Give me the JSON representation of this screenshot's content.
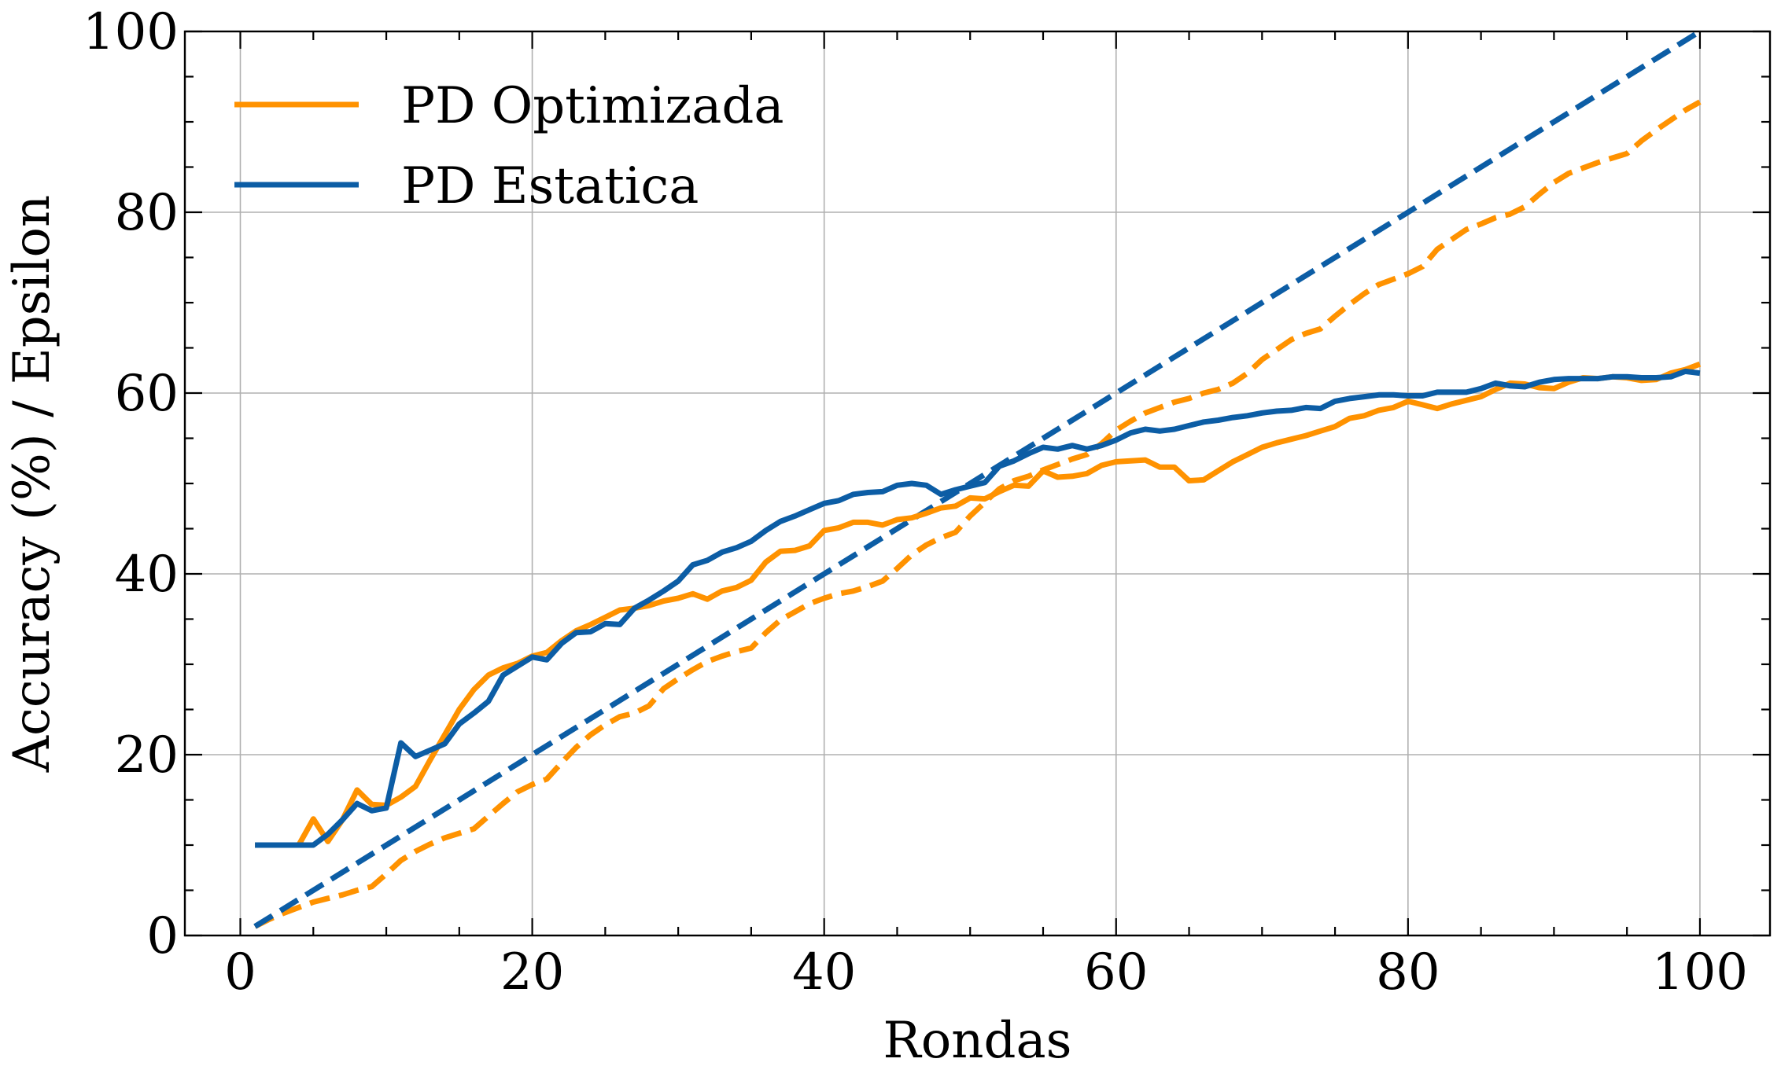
{
  "chart_data": {
    "type": "line",
    "xlabel": "Rondas",
    "ylabel": "Accuracy (%) / Epsilon",
    "xlim": [
      -3.8,
      104.8
    ],
    "ylim": [
      0,
      100
    ],
    "xticks": [
      0,
      20,
      40,
      60,
      80,
      100
    ],
    "yticks": [
      0,
      20,
      40,
      60,
      80,
      100
    ],
    "grid": true,
    "legend_position": "top-left",
    "colors": {
      "optimizada": "#ff9200",
      "estatica": "#0c5da5"
    },
    "series": [
      {
        "name": "PD Optimizada",
        "style": "solid",
        "color": "#ff9200",
        "x": [
          1,
          2,
          3,
          4,
          5,
          6,
          7,
          8,
          9,
          10,
          11,
          12,
          13,
          14,
          15,
          16,
          17,
          18,
          19,
          20,
          21,
          22,
          23,
          24,
          25,
          26,
          27,
          28,
          29,
          30,
          31,
          32,
          33,
          34,
          35,
          36,
          37,
          38,
          39,
          40,
          41,
          42,
          43,
          44,
          45,
          46,
          47,
          48,
          49,
          50,
          51,
          52,
          53,
          54,
          55,
          56,
          57,
          58,
          59,
          60,
          61,
          62,
          63,
          64,
          65,
          66,
          67,
          68,
          69,
          70,
          71,
          72,
          73,
          74,
          75,
          76,
          77,
          78,
          79,
          80,
          81,
          82,
          83,
          84,
          85,
          86,
          87,
          88,
          89,
          90,
          91,
          92,
          93,
          94,
          95,
          96,
          97,
          98,
          99,
          100
        ],
        "values": [
          10,
          10,
          10,
          10,
          12.9,
          10.4,
          12.8,
          16.1,
          14.5,
          14.4,
          15.3,
          16.5,
          19.4,
          22.2,
          25,
          27.2,
          28.8,
          29.6,
          30.1,
          30.9,
          31.3,
          32.6,
          33.7,
          34.4,
          35.2,
          36,
          36.2,
          36.5,
          37,
          37.3,
          37.8,
          37.2,
          38.1,
          38.5,
          39.3,
          41.3,
          42.5,
          42.6,
          43.1,
          44.8,
          45.1,
          45.7,
          45.7,
          45.4,
          46,
          46.2,
          46.7,
          47.3,
          47.5,
          48.4,
          48.3,
          49.1,
          49.8,
          49.7,
          51.4,
          50.7,
          50.8,
          51.1,
          52,
          52.4,
          52.5,
          52.6,
          51.8,
          51.8,
          50.3,
          50.4,
          51.4,
          52.4,
          53.2,
          54,
          54.5,
          54.9,
          55.3,
          55.8,
          56.3,
          57.2,
          57.5,
          58.1,
          58.4,
          59.1,
          58.7,
          58.3,
          58.8,
          59.2,
          59.6,
          60.4,
          61.1,
          61,
          60.6,
          60.5,
          61.2,
          61.7,
          61.6,
          61.8,
          61.7,
          61.4,
          61.5,
          62.2,
          62.6,
          63.2
        ]
      },
      {
        "name": "PD Estatica",
        "style": "solid",
        "color": "#0c5da5",
        "x": [
          1,
          2,
          3,
          4,
          5,
          6,
          7,
          8,
          9,
          10,
          11,
          12,
          13,
          14,
          15,
          16,
          17,
          18,
          19,
          20,
          21,
          22,
          23,
          24,
          25,
          26,
          27,
          28,
          29,
          30,
          31,
          32,
          33,
          34,
          35,
          36,
          37,
          38,
          39,
          40,
          41,
          42,
          43,
          44,
          45,
          46,
          47,
          48,
          49,
          50,
          51,
          52,
          53,
          54,
          55,
          56,
          57,
          58,
          59,
          60,
          61,
          62,
          63,
          64,
          65,
          66,
          67,
          68,
          69,
          70,
          71,
          72,
          73,
          74,
          75,
          76,
          77,
          78,
          79,
          80,
          81,
          82,
          83,
          84,
          85,
          86,
          87,
          88,
          89,
          90,
          91,
          92,
          93,
          94,
          95,
          96,
          97,
          98,
          99,
          100
        ],
        "values": [
          10,
          10,
          10,
          10,
          10,
          11.2,
          12.8,
          14.6,
          13.8,
          14.1,
          21.3,
          19.8,
          20.5,
          21.2,
          23.4,
          24.6,
          25.9,
          28.8,
          29.8,
          30.8,
          30.5,
          32.3,
          33.5,
          33.6,
          34.5,
          34.4,
          36.2,
          37.1,
          38.1,
          39.2,
          41,
          41.5,
          42.4,
          42.9,
          43.6,
          44.8,
          45.8,
          46.4,
          47.1,
          47.8,
          48.1,
          48.8,
          49,
          49.1,
          49.8,
          50,
          49.8,
          48.8,
          49.3,
          49.7,
          50.1,
          51.9,
          52.5,
          53.3,
          54,
          53.8,
          54.2,
          53.8,
          54.2,
          54.8,
          55.6,
          56,
          55.8,
          56,
          56.4,
          56.8,
          57,
          57.3,
          57.5,
          57.8,
          58,
          58.1,
          58.4,
          58.3,
          59.1,
          59.4,
          59.6,
          59.8,
          59.8,
          59.7,
          59.7,
          60.1,
          60.1,
          60.1,
          60.5,
          61.1,
          60.8,
          60.7,
          61.2,
          61.5,
          61.6,
          61.6,
          61.6,
          61.8,
          61.8,
          61.7,
          61.7,
          61.8,
          62.4,
          62.2
        ]
      },
      {
        "name": "",
        "style": "dashed",
        "color": "#ff9200",
        "x": [
          1,
          2,
          3,
          4,
          5,
          6,
          7,
          8,
          9,
          10,
          11,
          12,
          13,
          14,
          15,
          16,
          17,
          18,
          19,
          20,
          21,
          22,
          23,
          24,
          25,
          26,
          27,
          28,
          29,
          30,
          31,
          32,
          33,
          34,
          35,
          36,
          37,
          38,
          39,
          40,
          41,
          42,
          43,
          44,
          45,
          46,
          47,
          48,
          49,
          50,
          51,
          52,
          53,
          54,
          55,
          56,
          57,
          58,
          59,
          60,
          61,
          62,
          63,
          64,
          65,
          66,
          67,
          68,
          69,
          70,
          71,
          72,
          73,
          74,
          75,
          76,
          77,
          78,
          79,
          80,
          81,
          82,
          83,
          84,
          85,
          86,
          87,
          88,
          89,
          90,
          91,
          92,
          93,
          94,
          95,
          96,
          97,
          98,
          99,
          100
        ],
        "values": [
          1,
          1.8,
          2.5,
          3.1,
          3.7,
          4.1,
          4.5,
          5,
          5.4,
          6.8,
          8.3,
          9.3,
          10.1,
          10.8,
          11.3,
          11.8,
          13.2,
          14.6,
          15.9,
          16.7,
          17.3,
          19.1,
          20.8,
          22.2,
          23.3,
          24.2,
          24.6,
          25.4,
          27.3,
          28.4,
          29.4,
          30.3,
          30.9,
          31.4,
          31.8,
          33.5,
          34.9,
          35.8,
          36.7,
          37.3,
          37.8,
          38.1,
          38.6,
          39.2,
          40.6,
          42.1,
          43.2,
          44,
          44.6,
          46.4,
          47.9,
          49.4,
          50.3,
          50.8,
          51.5,
          52.1,
          52.7,
          53.2,
          54.4,
          55.9,
          56.9,
          57.8,
          58.4,
          59,
          59.4,
          60,
          60.4,
          61.1,
          62.2,
          63.7,
          64.8,
          65.9,
          66.6,
          67.1,
          68.5,
          69.8,
          71,
          72,
          72.6,
          73.2,
          74,
          75.9,
          77,
          78.1,
          78.7,
          79.4,
          79.8,
          80.6,
          82,
          83.3,
          84.3,
          84.9,
          85.5,
          86,
          86.5,
          87.9,
          89.1,
          90.2,
          91.3,
          92.2
        ]
      },
      {
        "name": "",
        "style": "dashed",
        "color": "#0c5da5",
        "x": [
          1,
          100
        ],
        "values": [
          1,
          100
        ]
      }
    ]
  }
}
